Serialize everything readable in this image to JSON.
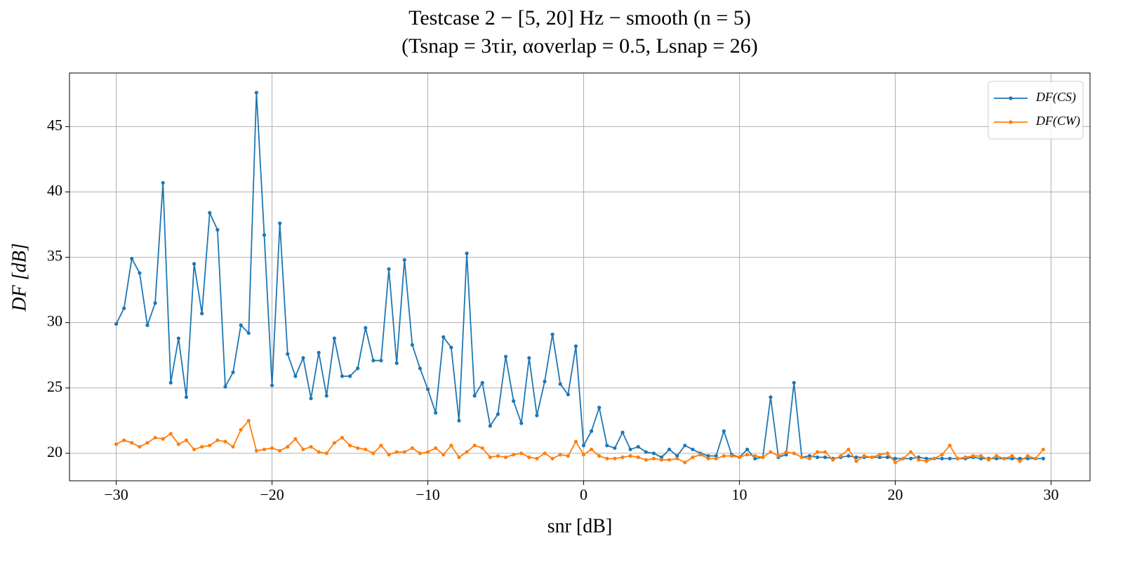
{
  "chart_data": {
    "type": "line",
    "title": "Testcase 2 − [5, 20] Hz − smooth (n = 5)",
    "subtitle": "(Tsnap = 3τir,   αoverlap = 0.5,   Lsnap = 26)",
    "x_label": "snr [dB]",
    "y_label": "DF [dB]",
    "x": [
      -30,
      -29.5,
      -29,
      -28.5,
      -28,
      -27.5,
      -27,
      -26.5,
      -26,
      -25.5,
      -25,
      -24.5,
      -24,
      -23.5,
      -23,
      -22.5,
      -22,
      -21.5,
      -21,
      -20.5,
      -20,
      -19.5,
      -19,
      -18.5,
      -18,
      -17.5,
      -17,
      -16.5,
      -16,
      -15.5,
      -15,
      -14.5,
      -14,
      -13.5,
      -13,
      -12.5,
      -12,
      -11.5,
      -11,
      -10.5,
      -10,
      -9.5,
      -9,
      -8.5,
      -8,
      -7.5,
      -7,
      -6.5,
      -6,
      -5.5,
      -5,
      -4.5,
      -4,
      -3.5,
      -3,
      -2.5,
      -2,
      -1.5,
      -1,
      -0.5,
      0,
      0.5,
      1,
      1.5,
      2,
      2.5,
      3,
      3.5,
      4,
      4.5,
      5,
      5.5,
      6,
      6.5,
      7,
      7.5,
      8,
      8.5,
      9,
      9.5,
      10,
      10.5,
      11,
      11.5,
      12,
      12.5,
      13,
      13.5,
      14,
      14.5,
      15,
      15.5,
      16,
      16.5,
      17,
      17.5,
      18,
      18.5,
      19,
      19.5,
      20,
      20.5,
      21,
      21.5,
      22,
      22.5,
      23,
      23.5,
      24,
      24.5,
      25,
      25.5,
      26,
      26.5,
      27,
      27.5,
      28,
      28.5,
      29,
      29.5
    ],
    "series": [
      {
        "name": "DF(CS)",
        "color": "#1f77b4",
        "values": [
          29.9,
          31.1,
          34.9,
          33.8,
          29.8,
          31.5,
          40.7,
          25.4,
          28.8,
          24.3,
          34.5,
          30.7,
          38.4,
          37.1,
          25.1,
          26.2,
          29.8,
          29.2,
          47.6,
          36.7,
          25.2,
          37.6,
          27.6,
          25.9,
          27.3,
          24.2,
          27.7,
          24.4,
          28.8,
          25.9,
          25.9,
          26.5,
          29.6,
          27.1,
          27.1,
          34.1,
          26.9,
          34.8,
          28.3,
          26.5,
          24.9,
          23.1,
          28.9,
          28.1,
          22.5,
          35.3,
          24.4,
          25.4,
          22.1,
          23.0,
          27.4,
          24.0,
          22.3,
          27.3,
          22.9,
          25.5,
          29.1,
          25.3,
          24.5,
          28.2,
          20.6,
          21.7,
          23.5,
          20.6,
          20.4,
          21.6,
          20.3,
          20.5,
          20.1,
          20.0,
          19.7,
          20.3,
          19.8,
          20.6,
          20.3,
          20.0,
          19.8,
          19.8,
          21.7,
          19.9,
          19.7,
          20.3,
          19.6,
          19.7,
          24.3,
          19.7,
          19.9,
          25.4,
          19.7,
          19.8,
          19.7,
          19.7,
          19.6,
          19.7,
          19.8,
          19.7,
          19.7,
          19.7,
          19.7,
          19.7,
          19.6,
          19.6,
          19.6,
          19.7,
          19.6,
          19.6,
          19.6,
          19.6,
          19.6,
          19.6,
          19.7,
          19.6,
          19.6,
          19.6,
          19.6,
          19.6,
          19.6,
          19.6,
          19.6,
          19.6
        ]
      },
      {
        "name": "DF(CW)",
        "color": "#ff7f0e",
        "values": [
          20.7,
          21.0,
          20.8,
          20.5,
          20.8,
          21.2,
          21.1,
          21.5,
          20.7,
          21.0,
          20.3,
          20.5,
          20.6,
          21.0,
          20.9,
          20.5,
          21.8,
          22.5,
          20.2,
          20.3,
          20.4,
          20.2,
          20.5,
          21.1,
          20.3,
          20.5,
          20.1,
          20.0,
          20.8,
          21.2,
          20.6,
          20.4,
          20.3,
          20.0,
          20.6,
          19.9,
          20.1,
          20.1,
          20.4,
          20.0,
          20.1,
          20.4,
          19.9,
          20.6,
          19.7,
          20.1,
          20.6,
          20.4,
          19.7,
          19.8,
          19.7,
          19.9,
          20.0,
          19.7,
          19.6,
          20.0,
          19.6,
          19.9,
          19.8,
          20.9,
          19.9,
          20.3,
          19.8,
          19.6,
          19.6,
          19.7,
          19.8,
          19.7,
          19.5,
          19.6,
          19.5,
          19.5,
          19.6,
          19.3,
          19.7,
          19.9,
          19.6,
          19.6,
          19.8,
          19.8,
          19.7,
          19.9,
          19.8,
          19.7,
          20.1,
          19.8,
          20.1,
          20.0,
          19.7,
          19.6,
          20.1,
          20.1,
          19.5,
          19.8,
          20.3,
          19.4,
          19.8,
          19.7,
          19.9,
          20.0,
          19.3,
          19.6,
          20.1,
          19.5,
          19.4,
          19.6,
          19.9,
          20.6,
          19.6,
          19.7,
          19.8,
          19.8,
          19.5,
          19.8,
          19.6,
          19.8,
          19.4,
          19.8,
          19.6,
          20.3
        ]
      }
    ],
    "xlim": [
      -33,
      32.5
    ],
    "ylim": [
      17.9,
      49.1
    ],
    "xticks": [
      {
        "value": -30,
        "label": "−30"
      },
      {
        "value": -20,
        "label": "−20"
      },
      {
        "value": -10,
        "label": "−10"
      },
      0,
      10,
      20,
      30
    ],
    "yticks": [
      20,
      25,
      30,
      35,
      40,
      45
    ],
    "grid": true,
    "legend": "upper right"
  }
}
